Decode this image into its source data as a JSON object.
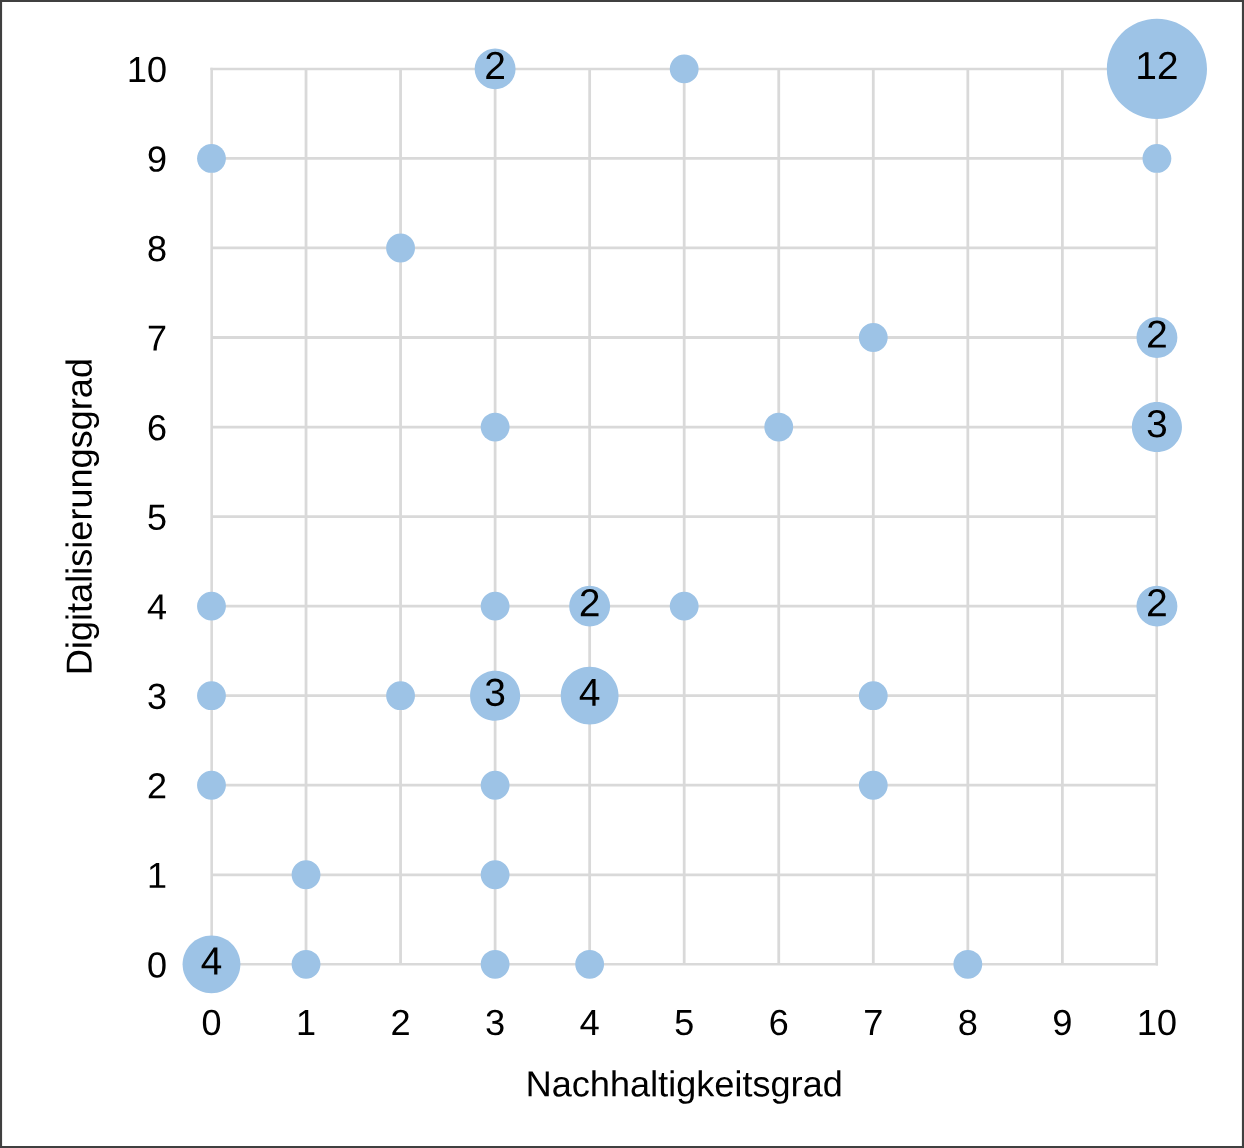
{
  "chart_data": {
    "type": "bubble",
    "xlabel": "Nachhaltigkeitsgrad",
    "ylabel": "Digitalisierungsgrad",
    "xlim": [
      0,
      10
    ],
    "ylim": [
      0,
      10
    ],
    "xticks": [
      0,
      1,
      2,
      3,
      4,
      5,
      6,
      7,
      8,
      9,
      10
    ],
    "yticks": [
      0,
      1,
      2,
      3,
      4,
      5,
      6,
      7,
      8,
      9,
      10
    ],
    "grid": true,
    "series": [
      {
        "color": "#9dc3e6",
        "x": [
          3,
          5,
          10,
          0,
          10,
          2,
          7,
          10,
          3,
          6,
          10,
          0,
          3,
          4,
          5,
          10,
          0,
          2,
          3,
          4,
          7,
          0,
          3,
          7,
          1,
          3,
          0,
          1,
          3,
          4,
          8
        ],
        "values": [
          10,
          10,
          10,
          9,
          9,
          8,
          7,
          7,
          6,
          6,
          6,
          4,
          4,
          4,
          4,
          4,
          3,
          3,
          3,
          3,
          3,
          2,
          2,
          2,
          1,
          1,
          0,
          0,
          0,
          0,
          0
        ],
        "sizes": [
          0.167,
          0.083,
          1,
          0.083,
          0.083,
          0.083,
          0.083,
          0.167,
          0.083,
          0.083,
          0.25,
          0.083,
          0.083,
          0.167,
          0.083,
          0.167,
          0.083,
          0.083,
          0.25,
          0.333,
          0.083,
          0.083,
          0.083,
          0.083,
          0.083,
          0.083,
          0.333,
          0.083,
          0.083,
          0.083,
          0.083
        ]
      }
    ],
    "annotations": [
      {
        "text": "2",
        "x": 3,
        "y": 10
      },
      {
        "text": "12",
        "x": 10,
        "y": 10
      },
      {
        "text": "2",
        "x": 10,
        "y": 7
      },
      {
        "text": "3",
        "x": 10,
        "y": 6
      },
      {
        "text": "2",
        "x": 4,
        "y": 4
      },
      {
        "text": "2",
        "x": 10,
        "y": 4
      },
      {
        "text": "3",
        "x": 3,
        "y": 3
      },
      {
        "text": "4",
        "x": 4,
        "y": 3
      },
      {
        "text": "4",
        "x": 0,
        "y": 0
      }
    ]
  }
}
